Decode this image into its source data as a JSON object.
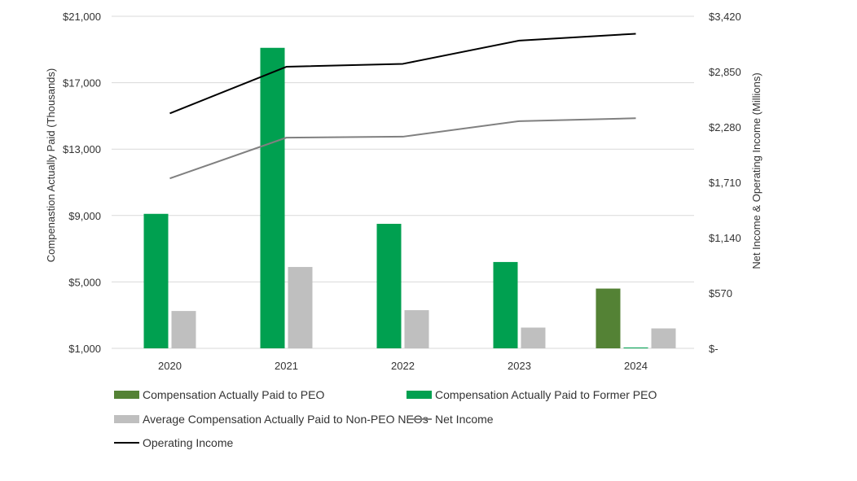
{
  "chart_data": {
    "type": "bar",
    "categories": [
      "2020",
      "2021",
      "2022",
      "2023",
      "2024"
    ],
    "left_axis": {
      "title": "Compenastion Actually Paid  (Thousands)",
      "range": [
        1000,
        21000
      ],
      "ticks": [
        1000,
        5000,
        9000,
        13000,
        17000,
        21000
      ],
      "tick_labels": [
        "$1,000",
        "$5,000",
        "$9,000",
        "$13,000",
        "$17,000",
        "$21,000"
      ]
    },
    "right_axis": {
      "title": "Net Income & Operating Income  (Millions)",
      "range": [
        0,
        3420
      ],
      "ticks": [
        0,
        570,
        1140,
        1710,
        2280,
        2850,
        3420
      ],
      "tick_labels": [
        "$-",
        "$570",
        "$1,140",
        "$1,710",
        "$2,280",
        "$2,850",
        "$3,420"
      ]
    },
    "series": [
      {
        "name": "Compensation Actually Paid to PEO",
        "kind": "bar",
        "axis": "left",
        "color": "#548235",
        "values": [
          null,
          null,
          null,
          null,
          4600
        ]
      },
      {
        "name": "Compensation Actually Paid to Former PEO",
        "kind": "bar",
        "axis": "left",
        "color": "#00A050",
        "values": [
          9100,
          19100,
          8500,
          6200,
          1050
        ]
      },
      {
        "name": "Average Compensation Actually Paid to Non-PEO NEOs",
        "kind": "bar",
        "axis": "left",
        "color": "#BFBFBF",
        "values": [
          3250,
          5900,
          3300,
          2250,
          2200
        ]
      },
      {
        "name": "Net Income",
        "kind": "line",
        "axis": "right",
        "color": "#808080",
        "values": [
          1750,
          2170,
          2180,
          2340,
          2370
        ]
      },
      {
        "name": "Operating Income",
        "kind": "line",
        "axis": "right",
        "color": "#000000",
        "values": [
          2420,
          2900,
          2930,
          3170,
          3240
        ]
      }
    ],
    "legend_position": "bottom",
    "grid": true
  }
}
